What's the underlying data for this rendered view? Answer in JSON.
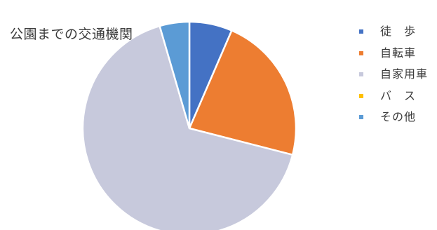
{
  "chart_data": {
    "type": "pie",
    "title": "公園までの交通機関",
    "categories": [
      "徒　歩",
      "自転車",
      "自家用車",
      "バ　ス",
      "その他"
    ],
    "values": [
      6.5,
      22.5,
      66.5,
      0,
      4.5
    ],
    "colors": [
      "#4472c4",
      "#ed7d31",
      "#c7c9dc",
      "#ffc000",
      "#5b9bd5"
    ],
    "legend_position": "right",
    "start_angle_deg": 0,
    "direction": "clockwise"
  }
}
